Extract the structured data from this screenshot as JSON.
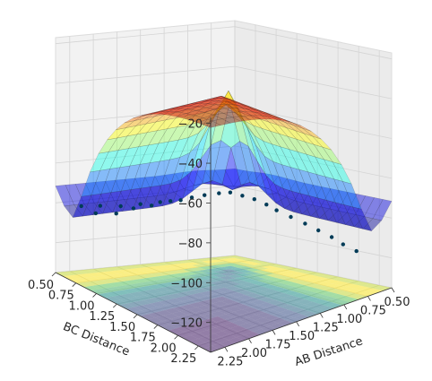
{
  "chart_data": {
    "type": "surface3d",
    "title": "",
    "xlabel": "AB Distance",
    "ylabel": "BC Distance",
    "zlabel": "",
    "x_ticks": [
      "0.50",
      "0.75",
      "1.00",
      "1.25",
      "1.50",
      "1.75",
      "2.00",
      "2.25"
    ],
    "y_ticks": [
      "0.50",
      "0.75",
      "1.00",
      "1.25",
      "1.50",
      "1.75",
      "2.00",
      "2.25"
    ],
    "z_ticks": [
      "-20",
      "-40",
      "-60",
      "-80",
      "-100",
      "-120"
    ],
    "xlim": [
      0.5,
      2.4
    ],
    "ylim": [
      0.5,
      2.4
    ],
    "zlim": [
      -135,
      -17
    ],
    "colormap_surface": "jet",
    "colormap_contour": "viridis",
    "grid": true,
    "surface": {
      "min_energy": -103,
      "barrier_energy": -100,
      "plateau_energy": -20,
      "valley_floor_near_ab": 0.74,
      "valley_floor_near_bc": 0.74
    },
    "trajectory": {
      "color": "#003b57",
      "points": [
        {
          "ab": 2.3,
          "bc": 0.7,
          "e": -98
        },
        {
          "ab": 2.2,
          "bc": 0.76,
          "e": -101
        },
        {
          "ab": 2.1,
          "bc": 0.7,
          "e": -99
        },
        {
          "ab": 2.0,
          "bc": 0.78,
          "e": -102
        },
        {
          "ab": 1.9,
          "bc": 0.72,
          "e": -100
        },
        {
          "ab": 1.8,
          "bc": 0.76,
          "e": -101
        },
        {
          "ab": 1.7,
          "bc": 0.73,
          "e": -100
        },
        {
          "ab": 1.6,
          "bc": 0.75,
          "e": -101
        },
        {
          "ab": 1.5,
          "bc": 0.74,
          "e": -100
        },
        {
          "ab": 1.4,
          "bc": 0.75,
          "e": -100
        },
        {
          "ab": 1.3,
          "bc": 0.76,
          "e": -100
        },
        {
          "ab": 1.2,
          "bc": 0.78,
          "e": -99
        },
        {
          "ab": 1.1,
          "bc": 0.82,
          "e": -98
        },
        {
          "ab": 1.0,
          "bc": 0.88,
          "e": -97
        },
        {
          "ab": 0.95,
          "bc": 0.96,
          "e": -96
        },
        {
          "ab": 0.9,
          "bc": 1.05,
          "e": -97
        },
        {
          "ab": 0.86,
          "bc": 1.15,
          "e": -98
        },
        {
          "ab": 0.82,
          "bc": 1.25,
          "e": -100
        },
        {
          "ab": 0.8,
          "bc": 1.35,
          "e": -102
        },
        {
          "ab": 0.78,
          "bc": 1.5,
          "e": -104
        },
        {
          "ab": 0.76,
          "bc": 1.65,
          "e": -106
        },
        {
          "ab": 0.75,
          "bc": 1.8,
          "e": -108
        },
        {
          "ab": 0.74,
          "bc": 1.95,
          "e": -110
        },
        {
          "ab": 0.75,
          "bc": 2.1,
          "e": -112
        },
        {
          "ab": 0.74,
          "bc": 2.25,
          "e": -114
        }
      ]
    }
  }
}
